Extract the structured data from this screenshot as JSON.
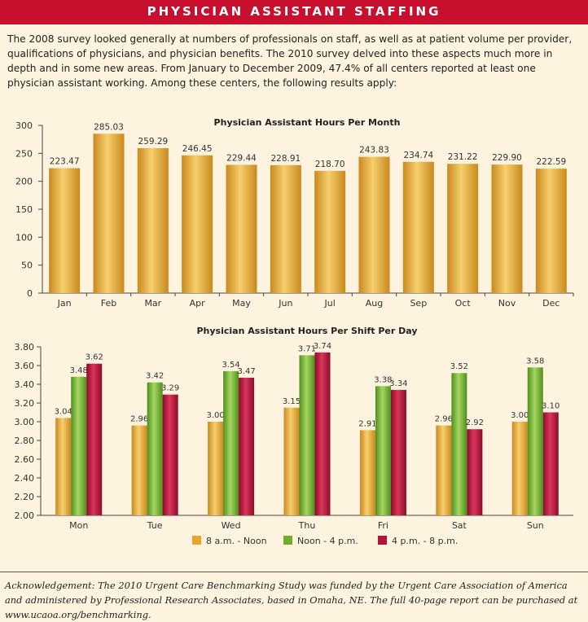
{
  "banner": {
    "title": "PHYSICIAN ASSISTANT STAFFING"
  },
  "intro": {
    "text": "The 2008 survey looked generally at numbers of professionals on staff, as well as at patient volume per provider, qualifications of physicians, and physician benefits. The 2010 survey delved into these aspects much more in depth and in some new areas. From January to December 2009, 47.4% of all centers reported at least one physician assistant working. Among these centers, the following results apply:"
  },
  "footer": {
    "text": "Acknowledgement: The 2010 Urgent Care Benchmarking Study was funded by the Urgent Care Association of America and administered by Professional Research Associates, based in Omaha, NE. The full 40-page report can be purchased at www.ucaoa.org/benchmarking."
  },
  "colors": {
    "banner": "#c8102e",
    "background": "#fdf3de",
    "gold": "#e4a630",
    "green": "#6fae2c",
    "crimson": "#b5123b"
  },
  "chart_data": [
    {
      "type": "bar",
      "title": "Physician Assistant Hours Per Month",
      "categories": [
        "Jan",
        "Feb",
        "Mar",
        "Apr",
        "May",
        "Jun",
        "Jul",
        "Aug",
        "Sep",
        "Oct",
        "Nov",
        "Dec"
      ],
      "values": [
        223.47,
        285.03,
        259.29,
        246.45,
        229.44,
        228.91,
        218.7,
        243.83,
        234.74,
        231.22,
        229.9,
        222.59
      ],
      "labels": [
        "223.47",
        "285.03",
        "259.29",
        "246.45",
        "229.44",
        "228.91",
        "218.70",
        "243.83",
        "234.74",
        "231.22",
        "229.90",
        "222.59"
      ],
      "ylim": [
        0,
        300
      ],
      "yticks": [
        "0",
        "50",
        "100",
        "150",
        "200",
        "250",
        "300"
      ],
      "grid": false
    },
    {
      "type": "bar",
      "title": "Physician Assistant Hours Per Shift Per Day",
      "categories": [
        "Mon",
        "Tue",
        "Wed",
        "Thu",
        "Fri",
        "Sat",
        "Sun"
      ],
      "series": [
        {
          "name": "8 a.m. - Noon",
          "values": [
            3.04,
            2.96,
            3.0,
            3.15,
            2.91,
            2.96,
            3.0
          ],
          "labels": [
            "3.04",
            "2.96",
            "3.00",
            "3.15",
            "2.91",
            "2.96",
            "3.00"
          ]
        },
        {
          "name": "Noon - 4 p.m.",
          "values": [
            3.48,
            3.42,
            3.54,
            3.71,
            3.38,
            3.52,
            3.58
          ],
          "labels": [
            "3.48",
            "3.42",
            "3.54",
            "3.71",
            "3.38",
            "3.52",
            "3.58"
          ]
        },
        {
          "name": "4 p.m. - 8 p.m.",
          "values": [
            3.62,
            3.29,
            3.47,
            3.74,
            3.34,
            2.92,
            3.1
          ],
          "labels": [
            "3.62",
            "3.29",
            "3.47",
            "3.74",
            "3.34",
            "2.92",
            "3.10"
          ]
        }
      ],
      "ylim": [
        2.0,
        3.8
      ],
      "yticks": [
        "2.00",
        "2.20",
        "2.40",
        "2.60",
        "2.80",
        "3.00",
        "3.20",
        "3.40",
        "3.60",
        "3.80"
      ],
      "legend_position": "bottom",
      "grid": false
    }
  ]
}
